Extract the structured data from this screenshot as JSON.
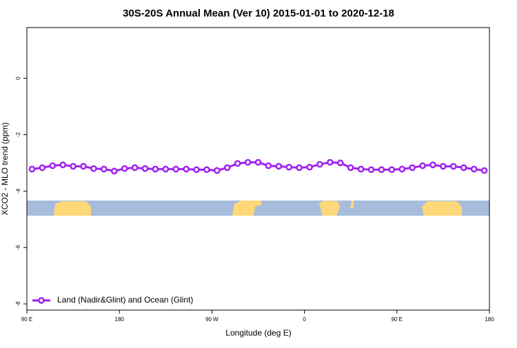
{
  "chart_data": {
    "type": "line",
    "title": "30S-20S Annual Mean (Ver 10)   2015-01-01 to 2020-12-18",
    "x_label": "Longitude (deg E)",
    "y_label": "XCO2 - MLO trend (ppm)",
    "x": [
      95,
      105,
      115,
      125,
      135,
      145,
      155,
      165,
      175,
      185,
      195,
      205,
      215,
      225,
      235,
      245,
      255,
      265,
      275,
      285,
      295,
      305,
      315,
      325,
      335,
      345,
      355,
      365,
      375,
      385,
      395,
      405,
      415,
      425,
      435,
      445,
      455,
      465,
      475,
      485,
      495,
      505,
      515,
      525,
      535
    ],
    "series": [
      {
        "name": "Land (Nadir&Glint) and Ocean (Glint)",
        "color": "#a020f0",
        "values": [
          -3.22,
          -3.17,
          -3.1,
          -3.07,
          -3.12,
          -3.12,
          -3.2,
          -3.22,
          -3.29,
          -3.2,
          -3.17,
          -3.2,
          -3.22,
          -3.22,
          -3.22,
          -3.22,
          -3.24,
          -3.24,
          -3.27,
          -3.17,
          -3.02,
          -2.98,
          -2.98,
          -3.1,
          -3.12,
          -3.15,
          -3.17,
          -3.15,
          -3.05,
          -2.98,
          -3.0,
          -3.17,
          -3.22,
          -3.24,
          -3.24,
          -3.24,
          -3.22,
          -3.17,
          -3.1,
          -3.07,
          -3.12,
          -3.12,
          -3.17,
          -3.22,
          -3.27
        ]
      }
    ],
    "xlim": [
      90,
      540
    ],
    "xticks": [
      {
        "value": 90,
        "label": "90 E"
      },
      180,
      {
        "value": 270,
        "label": "90 W"
      },
      {
        "value": 360,
        "label": "0"
      },
      {
        "value": 450,
        "label": "90 E"
      },
      {
        "value": 540,
        "label": "180"
      }
    ],
    "ylim": [
      -8.22,
      1.8
    ],
    "yticks": [
      -8,
      -6,
      -4,
      -2,
      0
    ],
    "legend": "bottom-left"
  }
}
